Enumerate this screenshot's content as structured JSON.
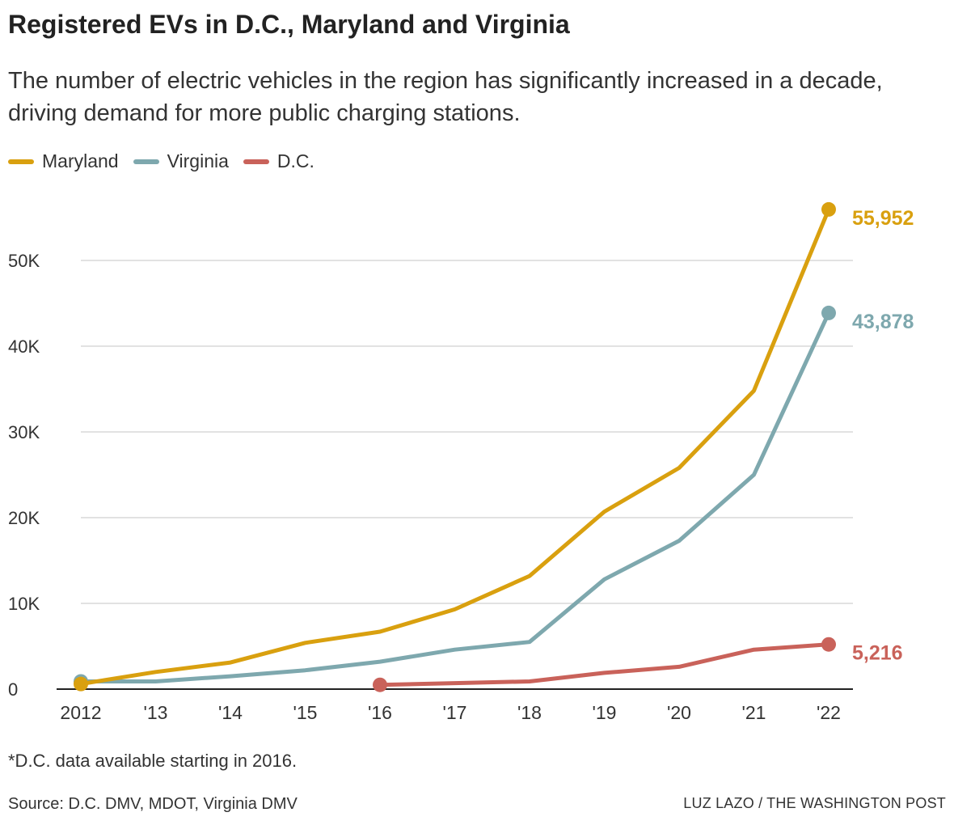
{
  "header": {
    "title": "Registered EVs in D.C., Maryland and Virginia",
    "subtitle": "The number of electric vehicles in the region has significantly increased in a decade, driving demand for more public charging stations."
  },
  "footer": {
    "footnote": "*D.C. data available starting in 2016.",
    "source": "Source: D.C. DMV, MDOT, Virginia DMV",
    "credit": "LUZ LAZO / THE WASHINGTON POST"
  },
  "colors": {
    "maryland": "#d9a00f",
    "virginia": "#7ea8ae",
    "dc": "#c9625a",
    "grid": "#d9d9d9",
    "axis": "#222222"
  },
  "chart_data": {
    "type": "line",
    "title": "Registered EVs in D.C., Maryland and Virginia",
    "xlabel": "",
    "ylabel": "",
    "x": [
      2012,
      2013,
      2014,
      2015,
      2016,
      2017,
      2018,
      2019,
      2020,
      2021,
      2022
    ],
    "x_tick_labels": [
      "2012",
      "'13",
      "'14",
      "'15",
      "'16",
      "'17",
      "'18",
      "'19",
      "'20",
      "'21",
      "'22"
    ],
    "y_ticks": [
      0,
      10000,
      20000,
      30000,
      40000,
      50000
    ],
    "y_tick_labels": [
      "0",
      "10K",
      "20K",
      "30K",
      "40K",
      "50K"
    ],
    "ylim": [
      0,
      56000
    ],
    "grid": true,
    "legend_placement": "top-left",
    "series": [
      {
        "name": "Maryland",
        "key": "maryland",
        "x": [
          2012,
          2013,
          2014,
          2015,
          2016,
          2017,
          2018,
          2019,
          2020,
          2021,
          2022
        ],
        "values": [
          600,
          2000,
          3100,
          5400,
          6700,
          9300,
          13200,
          20700,
          25800,
          34800,
          55952
        ],
        "end_label": "55,952"
      },
      {
        "name": "Virginia",
        "key": "virginia",
        "x": [
          2012,
          2013,
          2014,
          2015,
          2016,
          2017,
          2018,
          2019,
          2020,
          2021,
          2022
        ],
        "values": [
          900,
          900,
          1500,
          2200,
          3200,
          4600,
          5500,
          12800,
          17300,
          25000,
          43878
        ],
        "end_label": "43,878"
      },
      {
        "name": "D.C.",
        "key": "dc",
        "x": [
          2016,
          2017,
          2018,
          2019,
          2020,
          2021,
          2022
        ],
        "values": [
          500,
          700,
          900,
          1900,
          2600,
          4600,
          5216
        ],
        "end_label": "5,216"
      }
    ]
  }
}
